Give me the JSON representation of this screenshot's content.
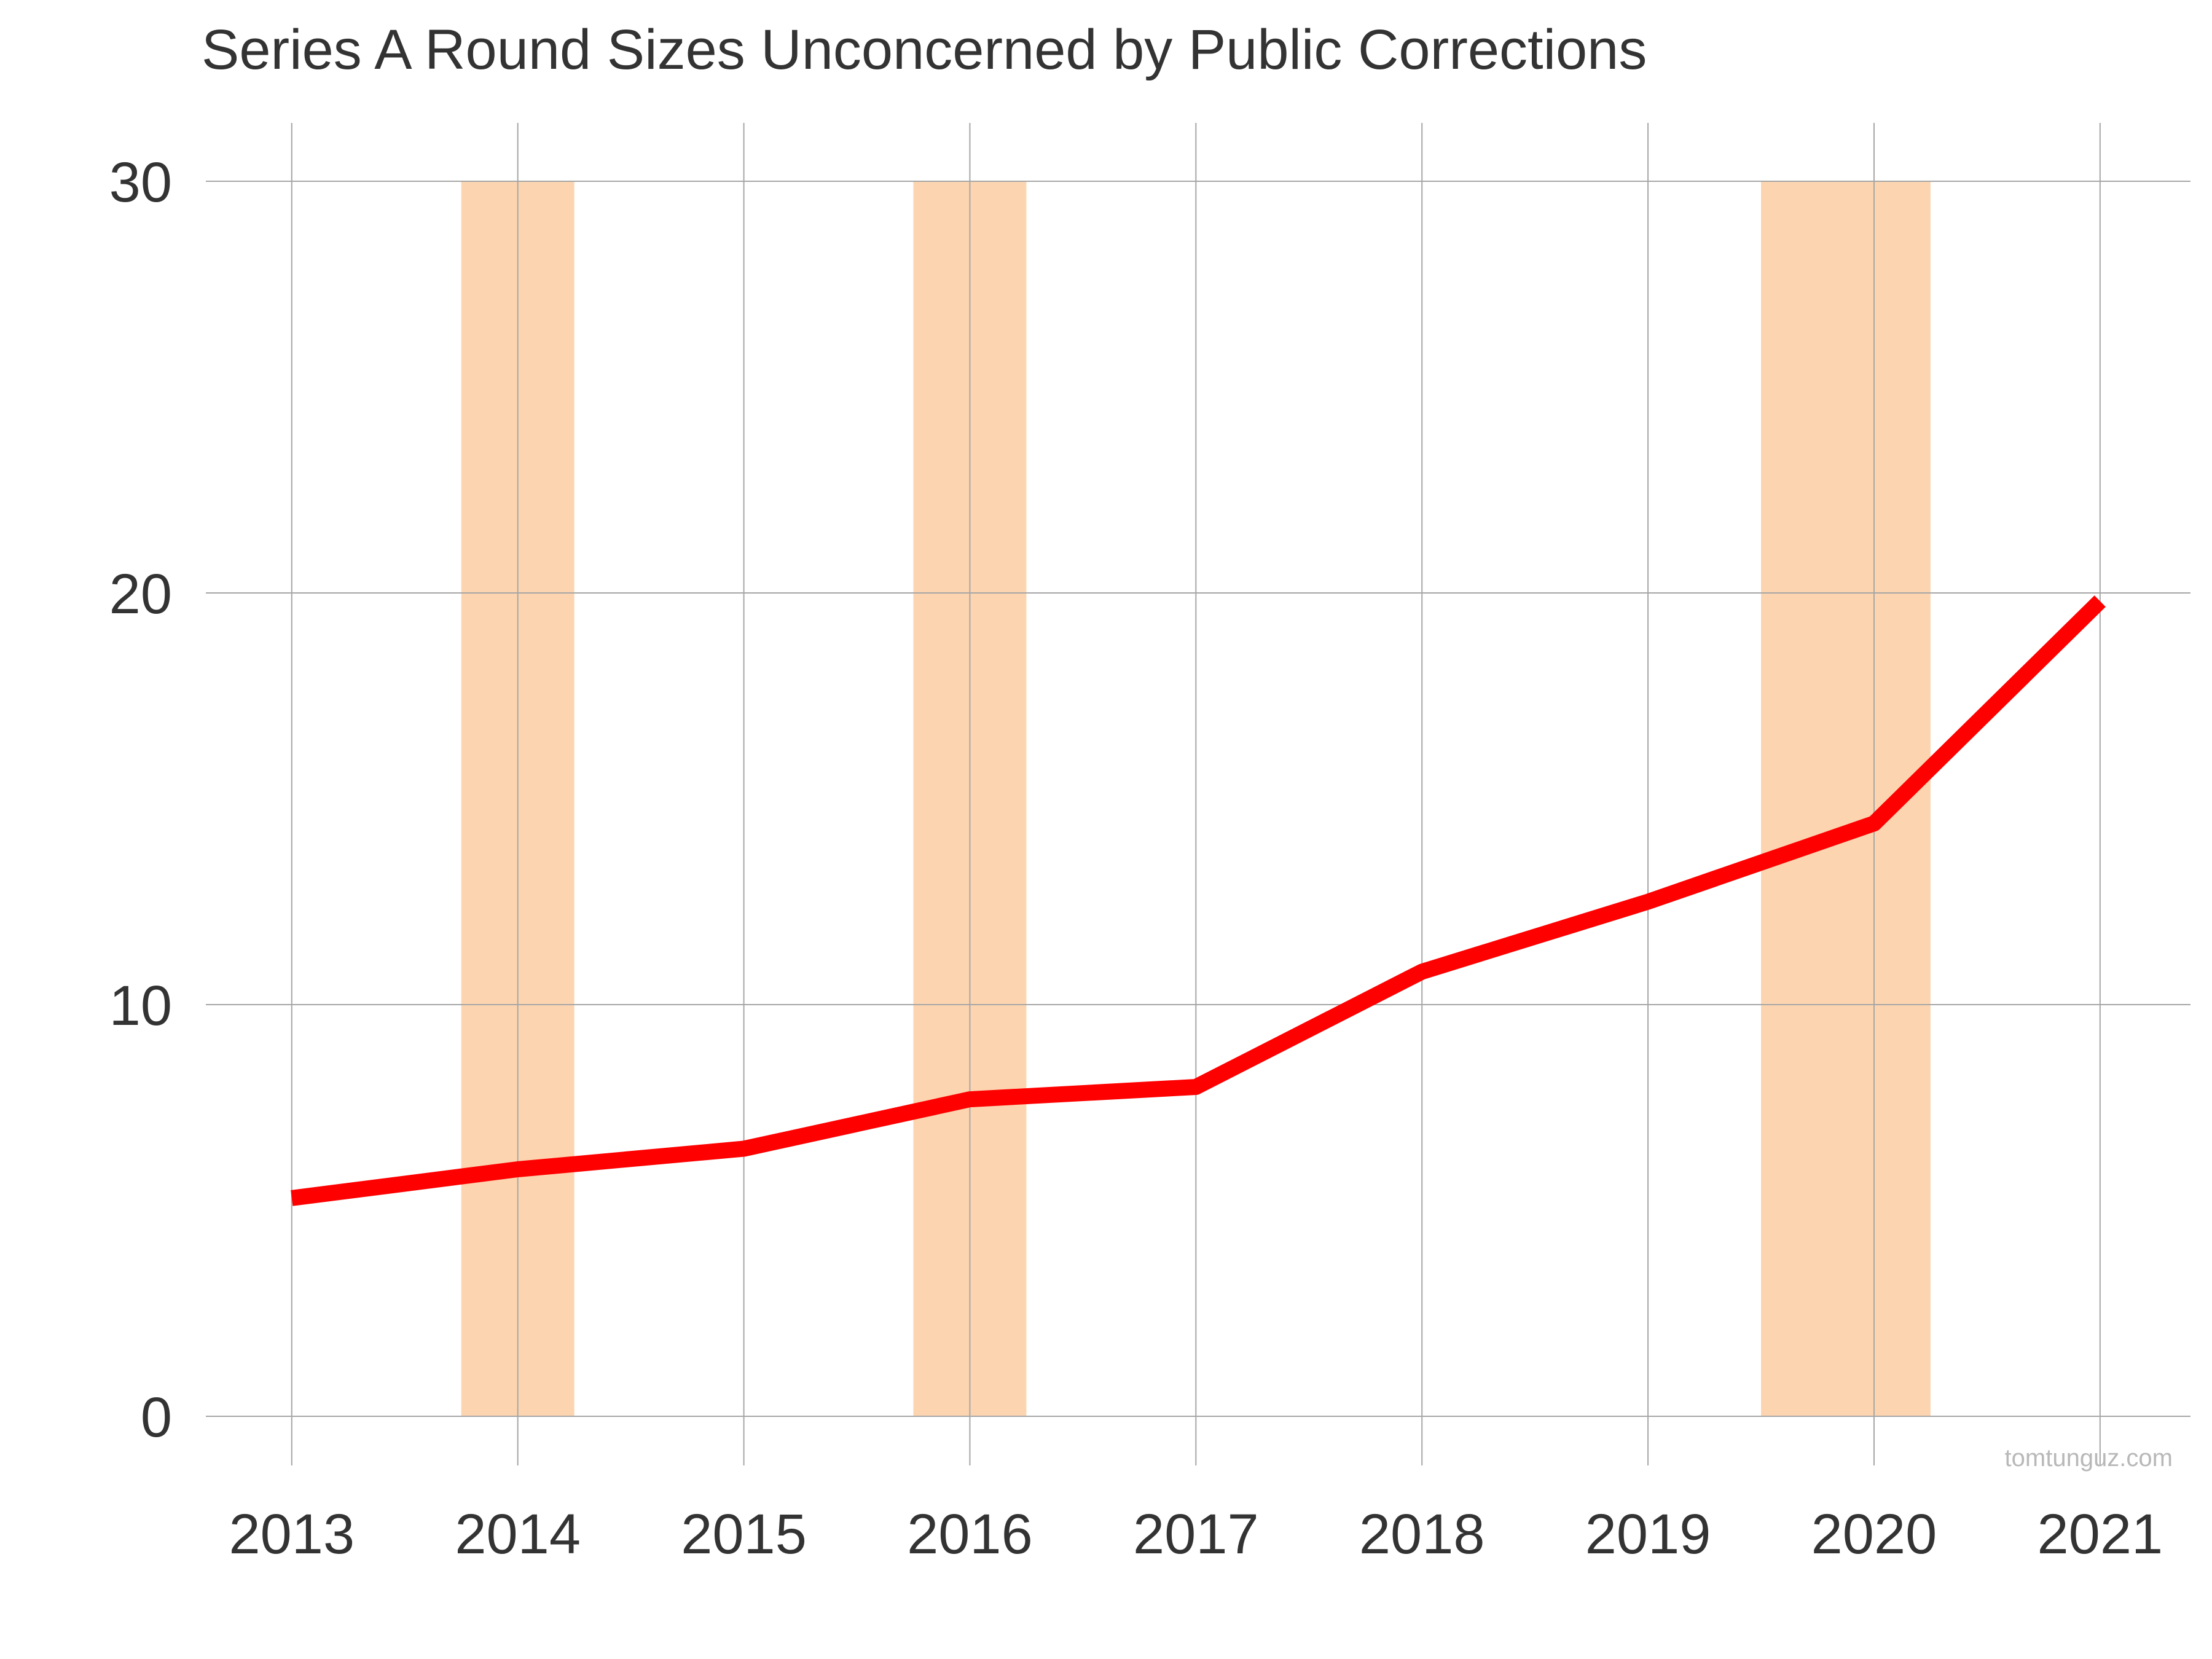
{
  "chart_data": {
    "type": "line",
    "title": "Series A Round Sizes Unconcerned by Public Corrections",
    "xlabel": "",
    "ylabel": "",
    "x": [
      2013,
      2014,
      2015,
      2016,
      2017,
      2018,
      2019,
      2020,
      2021
    ],
    "series": [
      {
        "values": [
          5.3,
          6.0,
          6.5,
          7.7,
          8.0,
          10.8,
          12.5,
          14.4,
          19.8
        ],
        "color": "#ff0000"
      }
    ],
    "xlim": [
      2012.62,
      2021.4
    ],
    "ylim": [
      0,
      30
    ],
    "yticks": [
      0,
      10,
      20,
      30
    ],
    "xticks": [
      "2013",
      "2014",
      "2015",
      "2016",
      "2017",
      "2018",
      "2019",
      "2020",
      "2021"
    ],
    "grid": true,
    "legend": "none",
    "highlight_color": "#fcd5b0",
    "highlights": [
      {
        "start": 2013.75,
        "end": 2014.25
      },
      {
        "start": 2015.75,
        "end": 2016.25
      },
      {
        "start": 2019.5,
        "end": 2020.25
      }
    ],
    "credit": "tomtunguz.com"
  }
}
